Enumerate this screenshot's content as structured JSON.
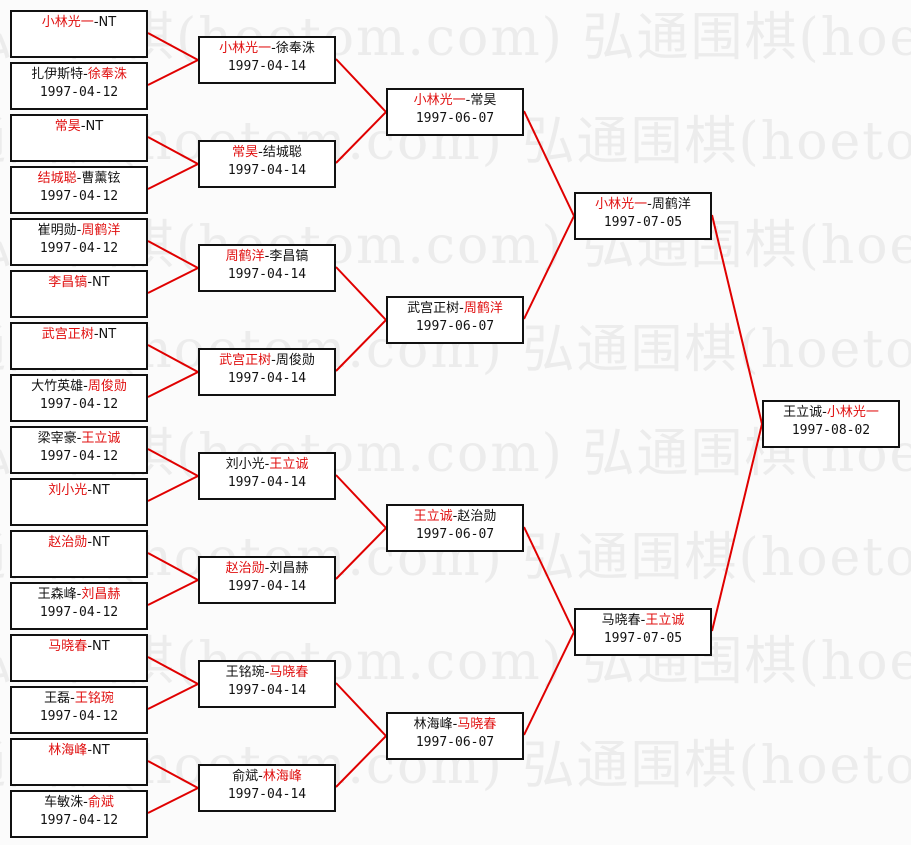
{
  "watermark": "弘通围棋(hoetom.com)",
  "colors": {
    "winner": "#e01010",
    "line": "#e00000",
    "text": "#111111"
  },
  "rounds": [
    [
      {
        "p1": "小林光一",
        "p2": "NT",
        "winner": 1,
        "date": ""
      },
      {
        "p1": "扎伊斯特",
        "p2": "徐奉洙",
        "winner": 2,
        "date": "1997-04-12"
      },
      {
        "p1": "常昊",
        "p2": "NT",
        "winner": 1,
        "date": ""
      },
      {
        "p1": "结城聪",
        "p2": "曹薰铉",
        "winner": 1,
        "date": "1997-04-12"
      },
      {
        "p1": "崔明勋",
        "p2": "周鹤洋",
        "winner": 2,
        "date": "1997-04-12"
      },
      {
        "p1": "李昌镐",
        "p2": "NT",
        "winner": 1,
        "date": ""
      },
      {
        "p1": "武宫正树",
        "p2": "NT",
        "winner": 1,
        "date": ""
      },
      {
        "p1": "大竹英雄",
        "p2": "周俊勋",
        "winner": 2,
        "date": "1997-04-12"
      },
      {
        "p1": "梁宰豪",
        "p2": "王立诚",
        "winner": 2,
        "date": "1997-04-12"
      },
      {
        "p1": "刘小光",
        "p2": "NT",
        "winner": 1,
        "date": ""
      },
      {
        "p1": "赵治勋",
        "p2": "NT",
        "winner": 1,
        "date": ""
      },
      {
        "p1": "王森峰",
        "p2": "刘昌赫",
        "winner": 2,
        "date": "1997-04-12"
      },
      {
        "p1": "马晓春",
        "p2": "NT",
        "winner": 1,
        "date": ""
      },
      {
        "p1": "王磊",
        "p2": "王铭琬",
        "winner": 2,
        "date": "1997-04-12"
      },
      {
        "p1": "林海峰",
        "p2": "NT",
        "winner": 1,
        "date": ""
      },
      {
        "p1": "车敏洙",
        "p2": "俞斌",
        "winner": 2,
        "date": "1997-04-12"
      }
    ],
    [
      {
        "p1": "小林光一",
        "p2": "徐奉洙",
        "winner": 1,
        "date": "1997-04-14"
      },
      {
        "p1": "常昊",
        "p2": "结城聪",
        "winner": 1,
        "date": "1997-04-14"
      },
      {
        "p1": "周鹤洋",
        "p2": "李昌镐",
        "winner": 1,
        "date": "1997-04-14"
      },
      {
        "p1": "武宫正树",
        "p2": "周俊勋",
        "winner": 1,
        "date": "1997-04-14"
      },
      {
        "p1": "刘小光",
        "p2": "王立诚",
        "winner": 2,
        "date": "1997-04-14"
      },
      {
        "p1": "赵治勋",
        "p2": "刘昌赫",
        "winner": 1,
        "date": "1997-04-14"
      },
      {
        "p1": "王铭琬",
        "p2": "马晓春",
        "winner": 2,
        "date": "1997-04-14"
      },
      {
        "p1": "俞斌",
        "p2": "林海峰",
        "winner": 2,
        "date": "1997-04-14"
      }
    ],
    [
      {
        "p1": "小林光一",
        "p2": "常昊",
        "winner": 1,
        "date": "1997-06-07"
      },
      {
        "p1": "武宫正树",
        "p2": "周鹤洋",
        "winner": 2,
        "date": "1997-06-07"
      },
      {
        "p1": "王立诚",
        "p2": "赵治勋",
        "winner": 1,
        "date": "1997-06-07"
      },
      {
        "p1": "林海峰",
        "p2": "马晓春",
        "winner": 2,
        "date": "1997-06-07"
      }
    ],
    [
      {
        "p1": "小林光一",
        "p2": "周鹤洋",
        "winner": 1,
        "date": "1997-07-05"
      },
      {
        "p1": "马晓春",
        "p2": "王立诚",
        "winner": 2,
        "date": "1997-07-05"
      }
    ],
    [
      {
        "p1": "王立诚",
        "p2": "小林光一",
        "winner": 2,
        "date": "1997-08-02"
      }
    ]
  ]
}
